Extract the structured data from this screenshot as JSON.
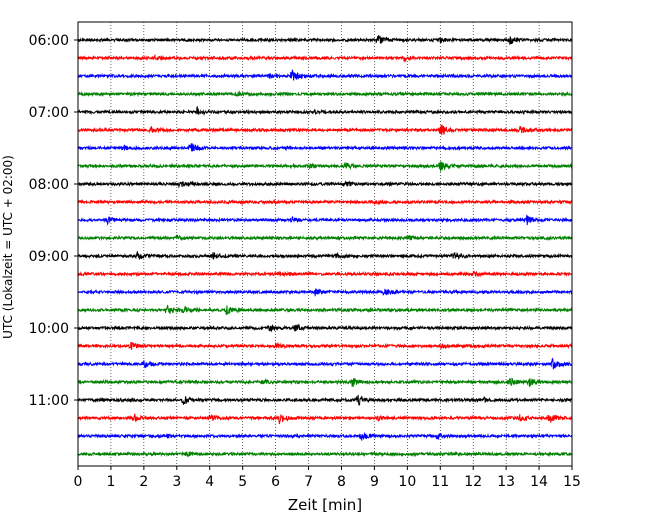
{
  "chart_data": {
    "type": "line",
    "title": "",
    "xlabel": "Zeit  [min]",
    "ylabel": "UTC (Lokalzeit = UTC + 02:00)",
    "xlim": [
      0,
      15
    ],
    "x_ticks": [
      0,
      1,
      2,
      3,
      4,
      5,
      6,
      7,
      8,
      9,
      10,
      11,
      12,
      13,
      14,
      15
    ],
    "y_tick_labels": [
      "06:00",
      "07:00",
      "08:00",
      "09:00",
      "10:00",
      "11:00"
    ],
    "trace_interval_min": 15,
    "grid": "vertical dotted at each minute",
    "series_colors": [
      "#000000",
      "#ff0000",
      "#0000ff",
      "#008000"
    ],
    "traces": [
      {
        "start": "06:00",
        "color": "#000000",
        "events": [
          [
            9.1,
            5
          ],
          [
            13.1,
            4
          ],
          [
            11.0,
            2
          ]
        ]
      },
      {
        "start": "06:15",
        "color": "#ff0000",
        "events": [
          [
            2.3,
            2
          ],
          [
            9.9,
            3
          ]
        ]
      },
      {
        "start": "06:30",
        "color": "#0000ff",
        "events": [
          [
            6.5,
            9
          ],
          [
            5.8,
            2
          ]
        ]
      },
      {
        "start": "06:45",
        "color": "#008000",
        "events": [
          [
            4.8,
            2
          ]
        ]
      },
      {
        "start": "07:00",
        "color": "#000000",
        "events": [
          [
            3.6,
            5
          ],
          [
            7.2,
            2
          ]
        ]
      },
      {
        "start": "07:15",
        "color": "#ff0000",
        "events": [
          [
            11.0,
            6
          ],
          [
            13.4,
            4
          ],
          [
            2.2,
            3
          ]
        ]
      },
      {
        "start": "07:30",
        "color": "#0000ff",
        "events": [
          [
            3.4,
            6
          ],
          [
            1.4,
            2
          ]
        ]
      },
      {
        "start": "07:45",
        "color": "#008000",
        "events": [
          [
            11.0,
            5
          ],
          [
            8.1,
            3
          ],
          [
            7.0,
            2
          ]
        ]
      },
      {
        "start": "08:00",
        "color": "#000000",
        "events": [
          [
            3.1,
            4
          ],
          [
            8.1,
            3
          ]
        ]
      },
      {
        "start": "08:15",
        "color": "#ff0000",
        "events": [
          [
            9.0,
            2
          ]
        ]
      },
      {
        "start": "08:30",
        "color": "#0000ff",
        "events": [
          [
            0.9,
            4
          ],
          [
            13.6,
            5
          ],
          [
            6.5,
            2
          ]
        ]
      },
      {
        "start": "08:45",
        "color": "#008000",
        "events": [
          [
            3.0,
            2
          ],
          [
            10.0,
            2
          ]
        ]
      },
      {
        "start": "09:00",
        "color": "#000000",
        "events": [
          [
            1.8,
            4
          ],
          [
            11.4,
            4
          ],
          [
            4.1,
            3
          ],
          [
            7.8,
            2
          ]
        ]
      },
      {
        "start": "09:15",
        "color": "#ff0000",
        "events": [
          [
            6.1,
            2
          ],
          [
            12.0,
            2
          ]
        ]
      },
      {
        "start": "09:30",
        "color": "#0000ff",
        "events": [
          [
            7.2,
            3
          ],
          [
            9.3,
            4
          ]
        ]
      },
      {
        "start": "09:45",
        "color": "#008000",
        "events": [
          [
            2.7,
            5
          ],
          [
            4.5,
            4
          ],
          [
            3.2,
            3
          ]
        ]
      },
      {
        "start": "10:00",
        "color": "#000000",
        "events": [
          [
            5.8,
            4
          ],
          [
            6.6,
            4
          ]
        ]
      },
      {
        "start": "10:15",
        "color": "#ff0000",
        "events": [
          [
            1.6,
            4
          ],
          [
            6.0,
            2
          ],
          [
            11.0,
            2
          ]
        ]
      },
      {
        "start": "10:30",
        "color": "#0000ff",
        "events": [
          [
            2.0,
            3
          ],
          [
            14.4,
            6
          ]
        ]
      },
      {
        "start": "10:45",
        "color": "#008000",
        "events": [
          [
            5.6,
            3
          ],
          [
            8.3,
            5
          ],
          [
            13.1,
            4
          ],
          [
            13.7,
            4
          ]
        ]
      },
      {
        "start": "11:00",
        "color": "#000000",
        "events": [
          [
            3.2,
            4
          ],
          [
            8.5,
            5
          ],
          [
            12.3,
            2
          ]
        ]
      },
      {
        "start": "11:15",
        "color": "#ff0000",
        "events": [
          [
            1.7,
            4
          ],
          [
            4.0,
            3
          ],
          [
            6.1,
            6
          ],
          [
            13.4,
            4
          ],
          [
            14.3,
            5
          ],
          [
            9.1,
            2
          ]
        ]
      },
      {
        "start": "11:30",
        "color": "#0000ff",
        "events": [
          [
            8.6,
            5
          ],
          [
            10.9,
            3
          ],
          [
            2.7,
            2
          ]
        ]
      },
      {
        "start": "11:45",
        "color": "#008000",
        "events": [
          [
            3.3,
            2
          ]
        ]
      }
    ]
  }
}
